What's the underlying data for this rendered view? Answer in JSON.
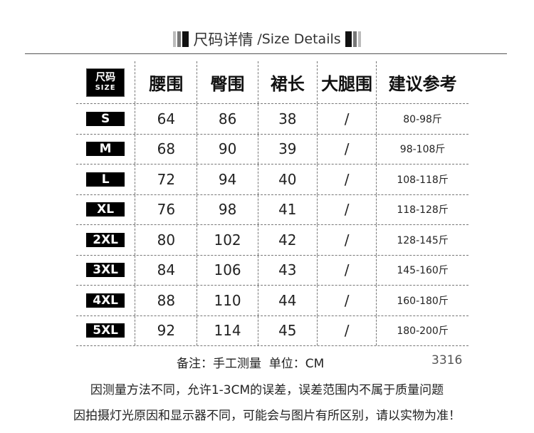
{
  "title": {
    "cn": "尺码详情",
    "en": "/Size Details"
  },
  "header": {
    "size_cn": "尺码",
    "size_en": "SIZE",
    "cols": [
      "腰围",
      "臀围",
      "裙长",
      "大腿围",
      "建议参考"
    ]
  },
  "rows": [
    [
      "S",
      "64",
      "86",
      "38",
      "/",
      "80-98斤"
    ],
    [
      "M",
      "68",
      "90",
      "39",
      "/",
      "98-108斤"
    ],
    [
      "L",
      "72",
      "94",
      "40",
      "/",
      "108-118斤"
    ],
    [
      "XL",
      "76",
      "98",
      "41",
      "/",
      "118-128斤"
    ],
    [
      "2XL",
      "80",
      "102",
      "42",
      "/",
      "128-145斤"
    ],
    [
      "3XL",
      "84",
      "106",
      "43",
      "/",
      "145-160斤"
    ],
    [
      "4XL",
      "88",
      "110",
      "44",
      "/",
      "160-180斤"
    ],
    [
      "5XL",
      "92",
      "114",
      "45",
      "/",
      "180-200斤"
    ]
  ],
  "note": "备注：手工测量  单位：CM",
  "code": "3316",
  "line1": "因测量方法不同，允许1-3CM的误差，误差范围内不属于质量问题",
  "line2": "因拍摄灯光原因和显示器不同，可能会与图片有所区别，请以实物为准！"
}
